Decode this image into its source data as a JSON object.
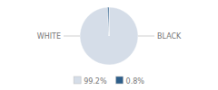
{
  "chart_data": {
    "type": "pie",
    "categories": [
      "WHITE",
      "BLACK"
    ],
    "values": [
      99.2,
      0.8
    ],
    "value_labels": [
      "99.2%",
      "0.8%"
    ],
    "colors": [
      "#d5dde8",
      "#2e5f8a"
    ],
    "legend": "bottom"
  }
}
